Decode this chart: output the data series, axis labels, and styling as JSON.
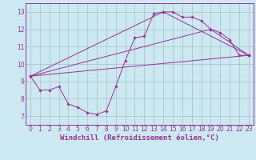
{
  "background_color": "#cce8f0",
  "grid_color": "#aabbcc",
  "line_color": "#993399",
  "marker_color": "#993399",
  "xlabel": "Windchill (Refroidissement éolien,°C)",
  "xlabel_fontsize": 6.5,
  "tick_fontsize": 5.5,
  "xlim": [
    -0.5,
    23.5
  ],
  "ylim": [
    6.5,
    13.5
  ],
  "yticks": [
    7,
    8,
    9,
    10,
    11,
    12,
    13
  ],
  "xticks": [
    0,
    1,
    2,
    3,
    4,
    5,
    6,
    7,
    8,
    9,
    10,
    11,
    12,
    13,
    14,
    15,
    16,
    17,
    18,
    19,
    20,
    21,
    22,
    23
  ],
  "curve1_x": [
    0,
    1,
    2,
    3,
    4,
    5,
    6,
    7,
    8,
    9,
    10,
    11,
    12,
    13,
    14,
    15,
    16,
    17,
    18,
    19,
    20,
    21,
    22,
    23
  ],
  "curve1_y": [
    9.3,
    8.5,
    8.5,
    8.7,
    7.7,
    7.5,
    7.2,
    7.1,
    7.3,
    8.7,
    10.2,
    11.5,
    11.6,
    12.9,
    13.0,
    13.0,
    12.7,
    12.7,
    12.5,
    12.0,
    11.8,
    11.4,
    10.5,
    10.5
  ],
  "curve2_x": [
    0,
    23
  ],
  "curve2_y": [
    9.3,
    10.5
  ],
  "curve3_x": [
    0,
    14,
    23
  ],
  "curve3_y": [
    9.3,
    13.0,
    10.5
  ],
  "curve4_x": [
    0,
    19,
    23
  ],
  "curve4_y": [
    9.3,
    12.0,
    10.5
  ],
  "lw": 0.7,
  "ms": 1.8
}
